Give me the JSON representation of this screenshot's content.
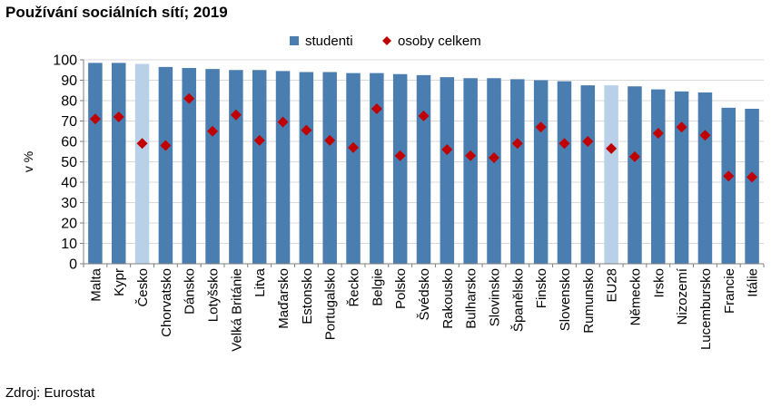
{
  "title": "Používání sociálních sítí; 2019",
  "source": "Zdroj: Eurostat",
  "chart_data": {
    "type": "bar",
    "title": "Používání sociálních sítí; 2019",
    "ylabel": "v %",
    "xlabel": "",
    "ylim": [
      0,
      100
    ],
    "yticks": [
      0,
      10,
      20,
      30,
      40,
      50,
      60,
      70,
      80,
      90,
      100
    ],
    "grid": true,
    "legend_position": "top-center",
    "categories": [
      "Malta",
      "Kypr",
      "Česko",
      "Chorvatsko",
      "Dánsko",
      "Lotyšsko",
      "Velká Británie",
      "Litva",
      "Maďarsko",
      "Estonsko",
      "Portugalsko",
      "Řecko",
      "Belgie",
      "Polsko",
      "Švédsko",
      "Rakousko",
      "Bulharsko",
      "Slovinsko",
      "Španělsko",
      "Finsko",
      "Slovensko",
      "Rumunsko",
      "EU28",
      "Německo",
      "Irsko",
      "Nizozemí",
      "Lucembursko",
      "Francie",
      "Itálie"
    ],
    "highlighted_categories": [
      "Česko",
      "EU28"
    ],
    "series": [
      {
        "name": "studenti",
        "type": "bar",
        "color": "#4A7DB0",
        "highlight_color": "#B8D0E8",
        "values": [
          98.5,
          98.5,
          98,
          96.5,
          96,
          95.5,
          95,
          95,
          94.5,
          94,
          94,
          93.5,
          93.5,
          93,
          92.5,
          91.5,
          91,
          91,
          90.5,
          90,
          89.5,
          87.5,
          87.5,
          87,
          85.5,
          84.5,
          84,
          76.5,
          76
        ]
      },
      {
        "name": "osoby celkem",
        "type": "scatter",
        "marker": "diamond",
        "color": "#C00000",
        "values": [
          71,
          72,
          59,
          58,
          81,
          65,
          73,
          60.5,
          69.5,
          65.5,
          60.5,
          57,
          76,
          53,
          72.5,
          56,
          53,
          52,
          59,
          67,
          59,
          60,
          56.5,
          52.5,
          64,
          67,
          63,
          43,
          42.5
        ]
      }
    ]
  }
}
